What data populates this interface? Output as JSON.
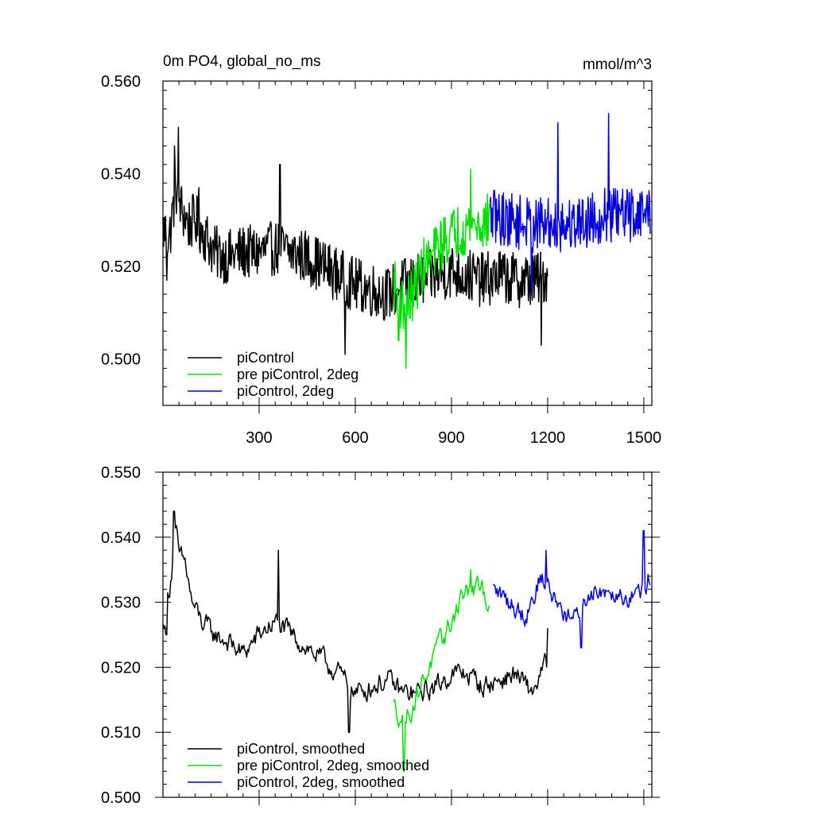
{
  "chart_data": [
    {
      "type": "line",
      "title_left": "0m PO4, global_no_ms",
      "title_right": "mmol/m^3",
      "xlabel": "",
      "ylabel": "",
      "xlim": [
        0,
        1525
      ],
      "ylim": [
        0.49,
        0.56
      ],
      "x_ticks": [
        300,
        600,
        900,
        1200,
        1500
      ],
      "x_tick_labels": [
        "300",
        "600",
        "900",
        "1200",
        "1500"
      ],
      "y_ticks": [
        0.5,
        0.52,
        0.54,
        0.56
      ],
      "y_tick_labels": [
        "0.500",
        "0.520",
        "0.540",
        "0.560"
      ],
      "legend_position": "bottom-left",
      "grid": false,
      "series": [
        {
          "name": "piControl",
          "color": "#000000",
          "x_range": [
            0,
            1200
          ],
          "anchors": [
            [
              0,
              0.528
            ],
            [
              20,
              0.526
            ],
            [
              40,
              0.537
            ],
            [
              60,
              0.532
            ],
            [
              80,
              0.529
            ],
            [
              100,
              0.53
            ],
            [
              130,
              0.527
            ],
            [
              160,
              0.523
            ],
            [
              200,
              0.522
            ],
            [
              250,
              0.523
            ],
            [
              300,
              0.523
            ],
            [
              350,
              0.524
            ],
            [
              400,
              0.523
            ],
            [
              450,
              0.522
            ],
            [
              500,
              0.52
            ],
            [
              550,
              0.518
            ],
            [
              600,
              0.516
            ],
            [
              650,
              0.515
            ],
            [
              700,
              0.514
            ],
            [
              750,
              0.516
            ],
            [
              800,
              0.517
            ],
            [
              850,
              0.518
            ],
            [
              900,
              0.519
            ],
            [
              950,
              0.518
            ],
            [
              1000,
              0.517
            ],
            [
              1050,
              0.518
            ],
            [
              1100,
              0.517
            ],
            [
              1150,
              0.517
            ],
            [
              1200,
              0.518
            ]
          ],
          "spikes": [
            [
              12,
              0.517
            ],
            [
              36,
              0.546
            ],
            [
              48,
              0.55
            ],
            [
              112,
              0.537
            ],
            [
              365,
              0.542
            ],
            [
              568,
              0.501
            ],
            [
              1180,
              0.503
            ]
          ]
        },
        {
          "name": "pre piControl, 2deg",
          "color": "#00e000",
          "x_range": [
            720,
            1020
          ],
          "anchors": [
            [
              720,
              0.516
            ],
            [
              750,
              0.511
            ],
            [
              780,
              0.514
            ],
            [
              810,
              0.52
            ],
            [
              840,
              0.522
            ],
            [
              870,
              0.525
            ],
            [
              900,
              0.527
            ],
            [
              930,
              0.528
            ],
            [
              960,
              0.529
            ],
            [
              990,
              0.529
            ],
            [
              1020,
              0.53
            ]
          ],
          "spikes": [
            [
              735,
              0.504
            ],
            [
              758,
              0.498
            ],
            [
              960,
              0.541
            ]
          ]
        },
        {
          "name": "piControl, 2deg",
          "color": "#0000dd",
          "x_range": [
            1020,
            1520
          ],
          "anchors": [
            [
              1020,
              0.531
            ],
            [
              1080,
              0.53
            ],
            [
              1140,
              0.529
            ],
            [
              1200,
              0.529
            ],
            [
              1260,
              0.529
            ],
            [
              1320,
              0.53
            ],
            [
              1380,
              0.531
            ],
            [
              1440,
              0.531
            ],
            [
              1520,
              0.532
            ]
          ],
          "spikes": [
            [
              1232,
              0.551
            ],
            [
              1390,
              0.553
            ],
            [
              1150,
              0.514
            ]
          ]
        }
      ]
    },
    {
      "type": "line",
      "title_left": "",
      "title_right": "",
      "xlabel": "",
      "ylabel": "",
      "xlim": [
        0,
        1525
      ],
      "ylim": [
        0.5,
        0.55
      ],
      "x_ticks": [
        300,
        600,
        900,
        1200,
        1500
      ],
      "x_tick_labels": [],
      "y_ticks": [
        0.5,
        0.51,
        0.52,
        0.53,
        0.54,
        0.55
      ],
      "y_tick_labels": [
        "0.500",
        "0.510",
        "0.520",
        "0.530",
        "0.540",
        "0.550"
      ],
      "legend_position": "bottom-left",
      "grid": false,
      "series": [
        {
          "name": "piControl, smoothed",
          "color": "#000000",
          "x_range": [
            0,
            1200
          ],
          "anchors": [
            [
              0,
              0.526
            ],
            [
              20,
              0.532
            ],
            [
              40,
              0.541
            ],
            [
              50,
              0.537
            ],
            [
              70,
              0.536
            ],
            [
              90,
              0.53
            ],
            [
              120,
              0.527
            ],
            [
              160,
              0.525
            ],
            [
              200,
              0.524
            ],
            [
              250,
              0.522
            ],
            [
              300,
              0.525
            ],
            [
              350,
              0.527
            ],
            [
              400,
              0.525
            ],
            [
              450,
              0.523
            ],
            [
              500,
              0.521
            ],
            [
              550,
              0.519
            ],
            [
              600,
              0.516
            ],
            [
              650,
              0.517
            ],
            [
              700,
              0.518
            ],
            [
              750,
              0.516
            ],
            [
              800,
              0.516
            ],
            [
              850,
              0.517
            ],
            [
              900,
              0.519
            ],
            [
              950,
              0.519
            ],
            [
              1000,
              0.517
            ],
            [
              1050,
              0.518
            ],
            [
              1100,
              0.519
            ],
            [
              1150,
              0.516
            ],
            [
              1200,
              0.521
            ]
          ],
          "spikes": [
            [
              35,
              0.544
            ],
            [
              10,
              0.525
            ],
            [
              360,
              0.538
            ],
            [
              580,
              0.51
            ],
            [
              1200,
              0.526
            ]
          ]
        },
        {
          "name": "pre piControl, 2deg, smoothed",
          "color": "#00e000",
          "x_range": [
            720,
            1020
          ],
          "anchors": [
            [
              720,
              0.514
            ],
            [
              750,
              0.512
            ],
            [
              780,
              0.514
            ],
            [
              810,
              0.518
            ],
            [
              840,
              0.521
            ],
            [
              870,
              0.524
            ],
            [
              900,
              0.527
            ],
            [
              930,
              0.531
            ],
            [
              960,
              0.532
            ],
            [
              990,
              0.532
            ],
            [
              1020,
              0.53
            ]
          ],
          "spikes": [
            [
              752,
              0.504
            ],
            [
              960,
              0.535
            ]
          ]
        },
        {
          "name": "piControl, 2deg, smoothed",
          "color": "#0000dd",
          "x_range": [
            1030,
            1520
          ],
          "anchors": [
            [
              1030,
              0.532
            ],
            [
              1080,
              0.53
            ],
            [
              1130,
              0.528
            ],
            [
              1180,
              0.534
            ],
            [
              1230,
              0.53
            ],
            [
              1280,
              0.527
            ],
            [
              1340,
              0.532
            ],
            [
              1400,
              0.532
            ],
            [
              1460,
              0.531
            ],
            [
              1500,
              0.532
            ],
            [
              1520,
              0.534
            ]
          ],
          "spikes": [
            [
              1195,
              0.538
            ],
            [
              1305,
              0.523
            ],
            [
              1500,
              0.541
            ]
          ]
        }
      ]
    }
  ]
}
